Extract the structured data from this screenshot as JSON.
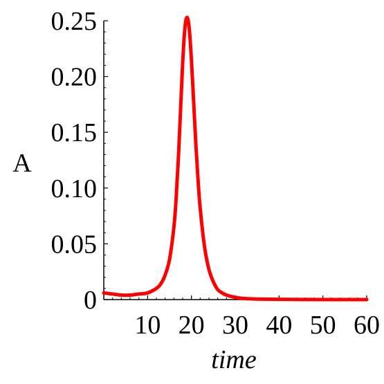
{
  "chart_data": {
    "type": "line",
    "title": "",
    "xlabel": "time",
    "ylabel": "A",
    "xlim": [
      0,
      60
    ],
    "ylim": [
      0,
      0.25
    ],
    "x_ticks": [
      10,
      20,
      30,
      40,
      50,
      60
    ],
    "x_tick_labels": [
      "10",
      "20",
      "30",
      "40",
      "50",
      "60"
    ],
    "y_ticks": [
      0,
      0.05,
      0.1,
      0.15,
      0.2,
      0.25
    ],
    "y_tick_labels": [
      "0",
      "0.05",
      "0.10",
      "0.15",
      "0.20",
      "0.25"
    ],
    "grid": false,
    "series": [
      {
        "color": "#ff0000",
        "x": [
          0,
          2,
          4,
          6,
          8,
          10,
          12,
          13,
          14,
          15,
          16,
          16.5,
          17,
          17.5,
          18,
          18.5,
          19,
          19.5,
          20,
          20.5,
          21,
          21.5,
          22,
          23,
          24,
          25,
          26,
          27,
          28,
          30,
          32,
          35,
          40,
          45,
          50,
          55,
          60
        ],
        "y": [
          0.006,
          0.005,
          0.004,
          0.004,
          0.005,
          0.006,
          0.01,
          0.014,
          0.022,
          0.036,
          0.065,
          0.09,
          0.125,
          0.168,
          0.212,
          0.243,
          0.253,
          0.243,
          0.215,
          0.178,
          0.14,
          0.108,
          0.082,
          0.047,
          0.027,
          0.016,
          0.009,
          0.006,
          0.004,
          0.002,
          0.001,
          0.0005,
          0.0002,
          0.0001,
          0,
          0,
          0
        ]
      }
    ]
  }
}
